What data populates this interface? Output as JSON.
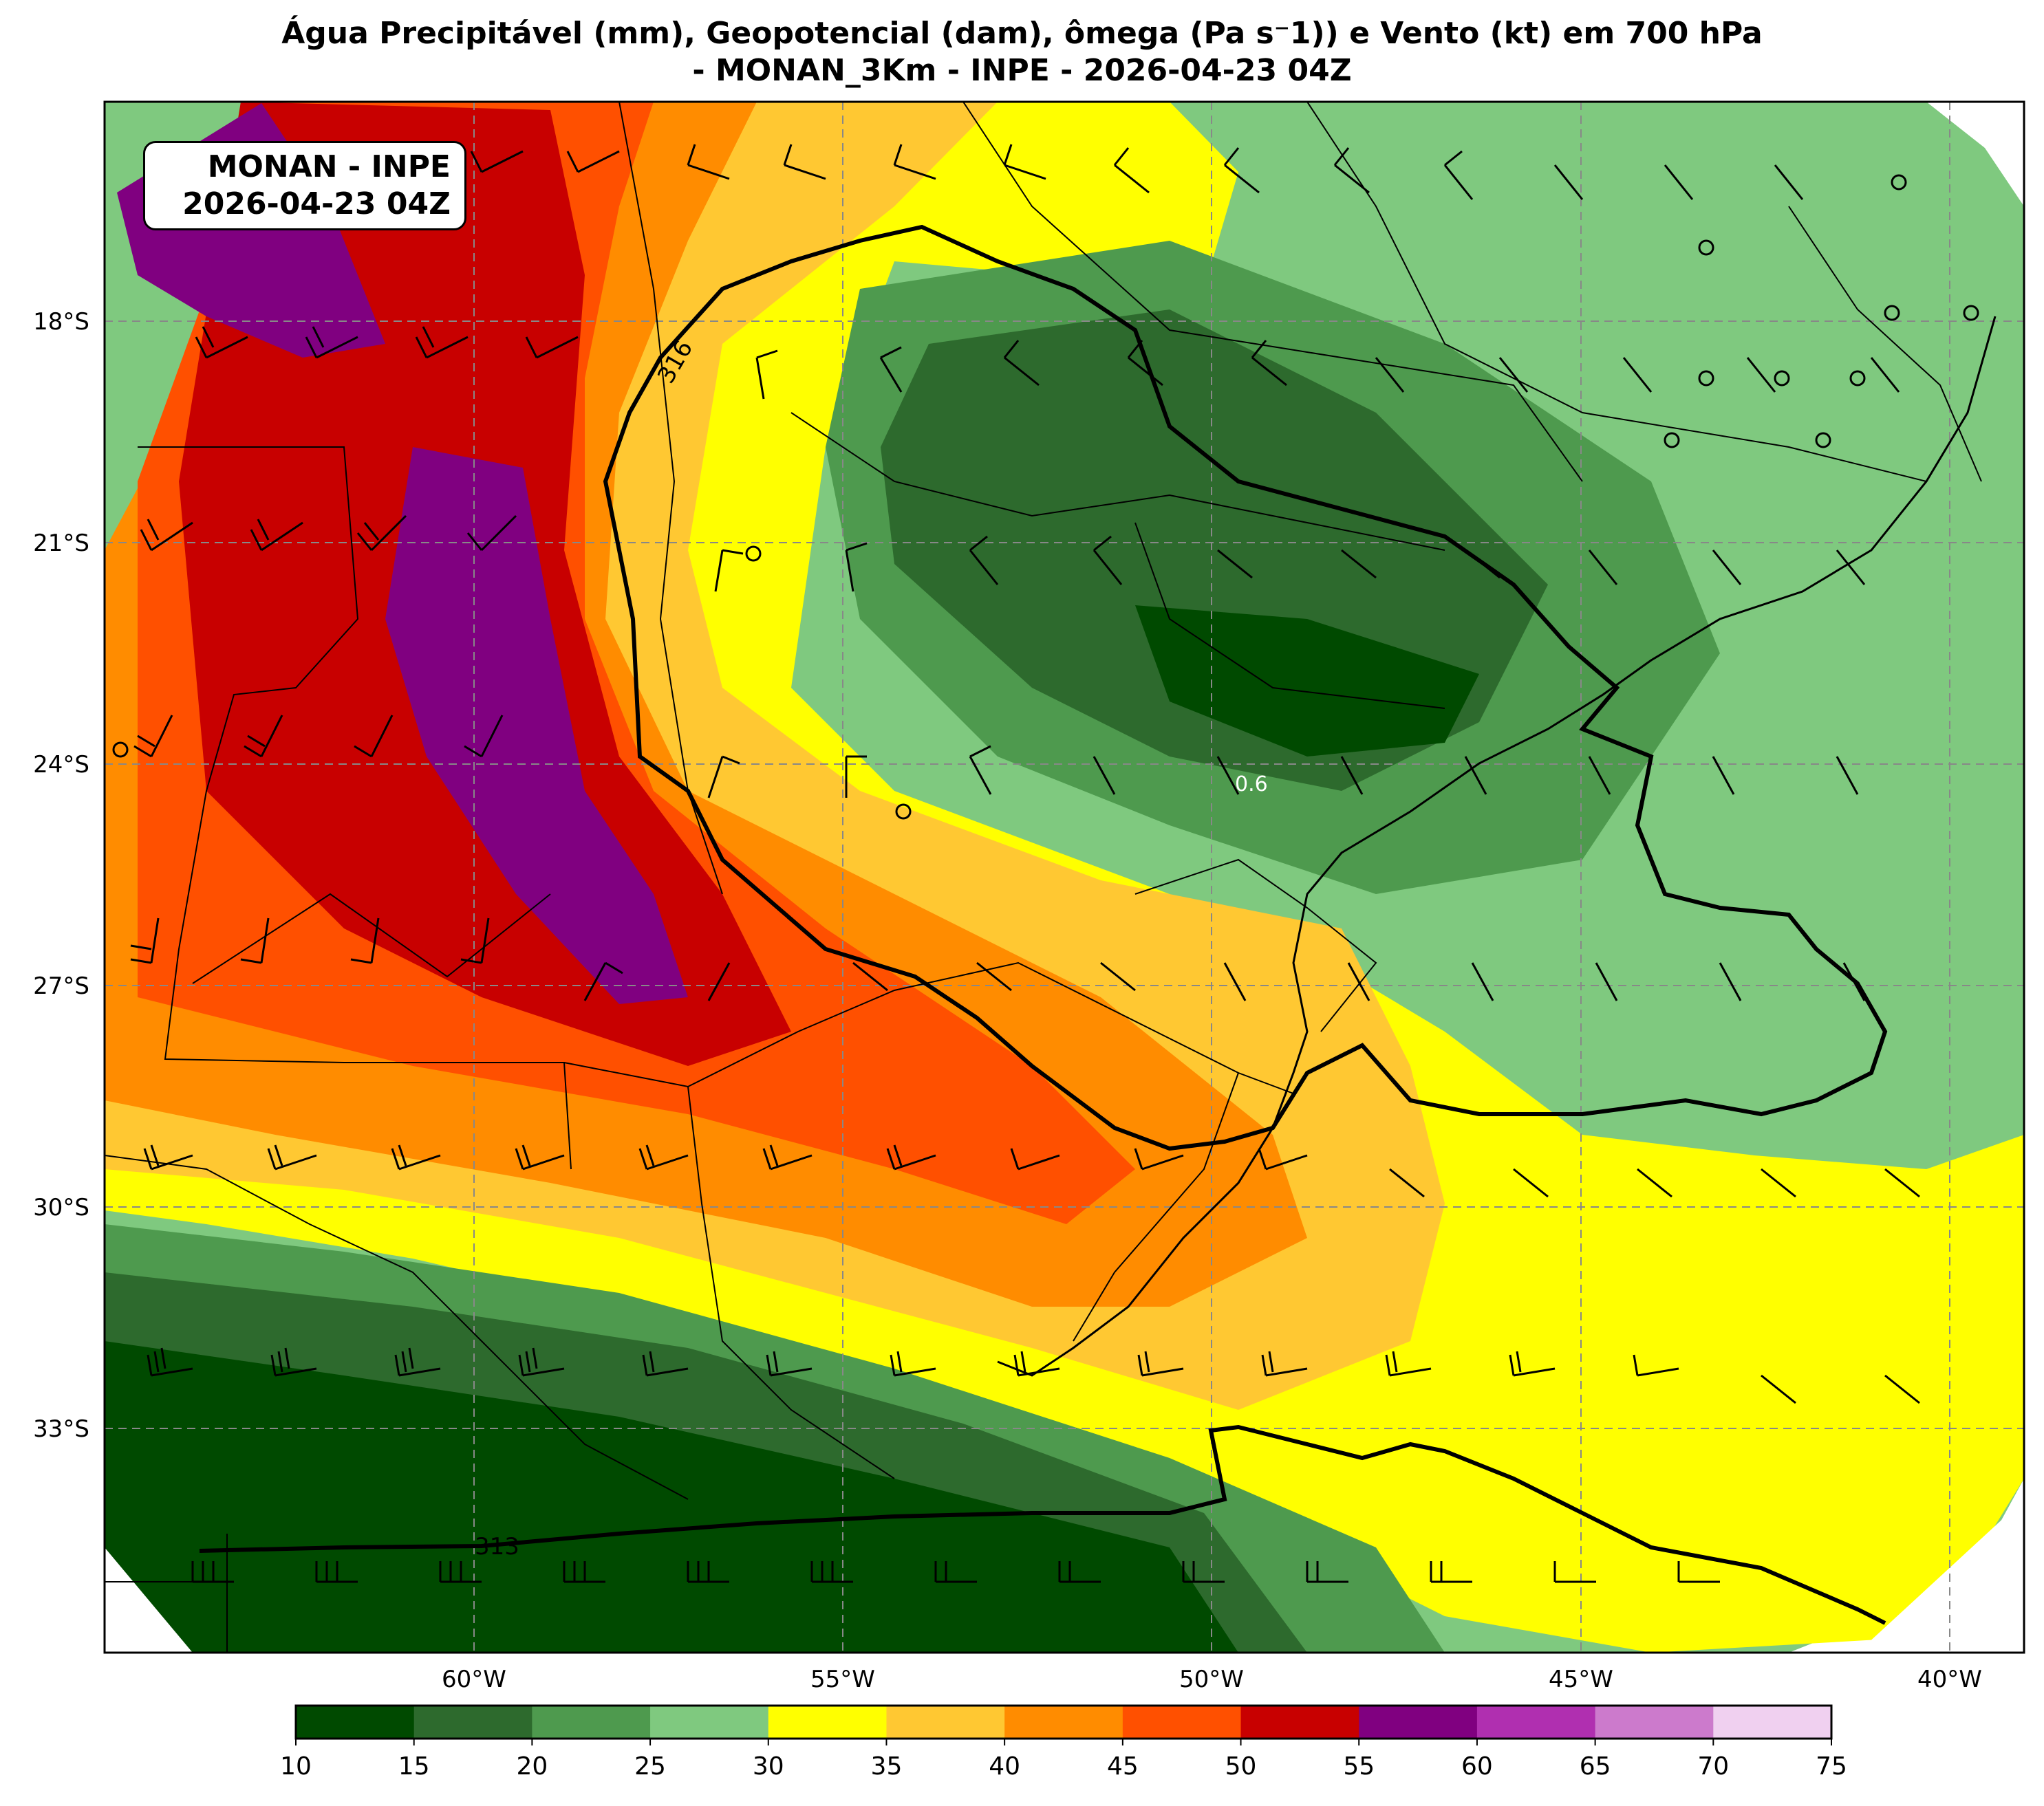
{
  "title": {
    "line1": "Água Precipitável (mm), Geopotencial (dam), ômega (Pa s⁻1)) e Vento (kt) em 700 hPa",
    "line2": "- MONAN_3Km - INPE - 2026-04-23 04Z"
  },
  "info_box": {
    "line1": "MONAN - INPE",
    "line2": "2026-04-23 04Z"
  },
  "map": {
    "lat_labels": [
      "18°S",
      "21°S",
      "24°S",
      "27°S",
      "30°S",
      "33°S"
    ],
    "lon_labels": [
      "60°W",
      "55°W",
      "50°W",
      "45°W",
      "40°W"
    ],
    "contour_labels": [
      "316",
      "313"
    ],
    "omega_label": "0.6"
  },
  "colorbar": {
    "ticks": [
      "10",
      "15",
      "20",
      "25",
      "30",
      "35",
      "40",
      "45",
      "50",
      "55",
      "60",
      "65",
      "70",
      "75"
    ],
    "colors": [
      "#004a00",
      "#2d6a2d",
      "#4e9a4e",
      "#7fc97f",
      "#ffff00",
      "#ffc832",
      "#ff8c00",
      "#ff5000",
      "#c80000",
      "#800080",
      "#b02fb0",
      "#cc7acc",
      "#f0d0f0"
    ]
  }
}
